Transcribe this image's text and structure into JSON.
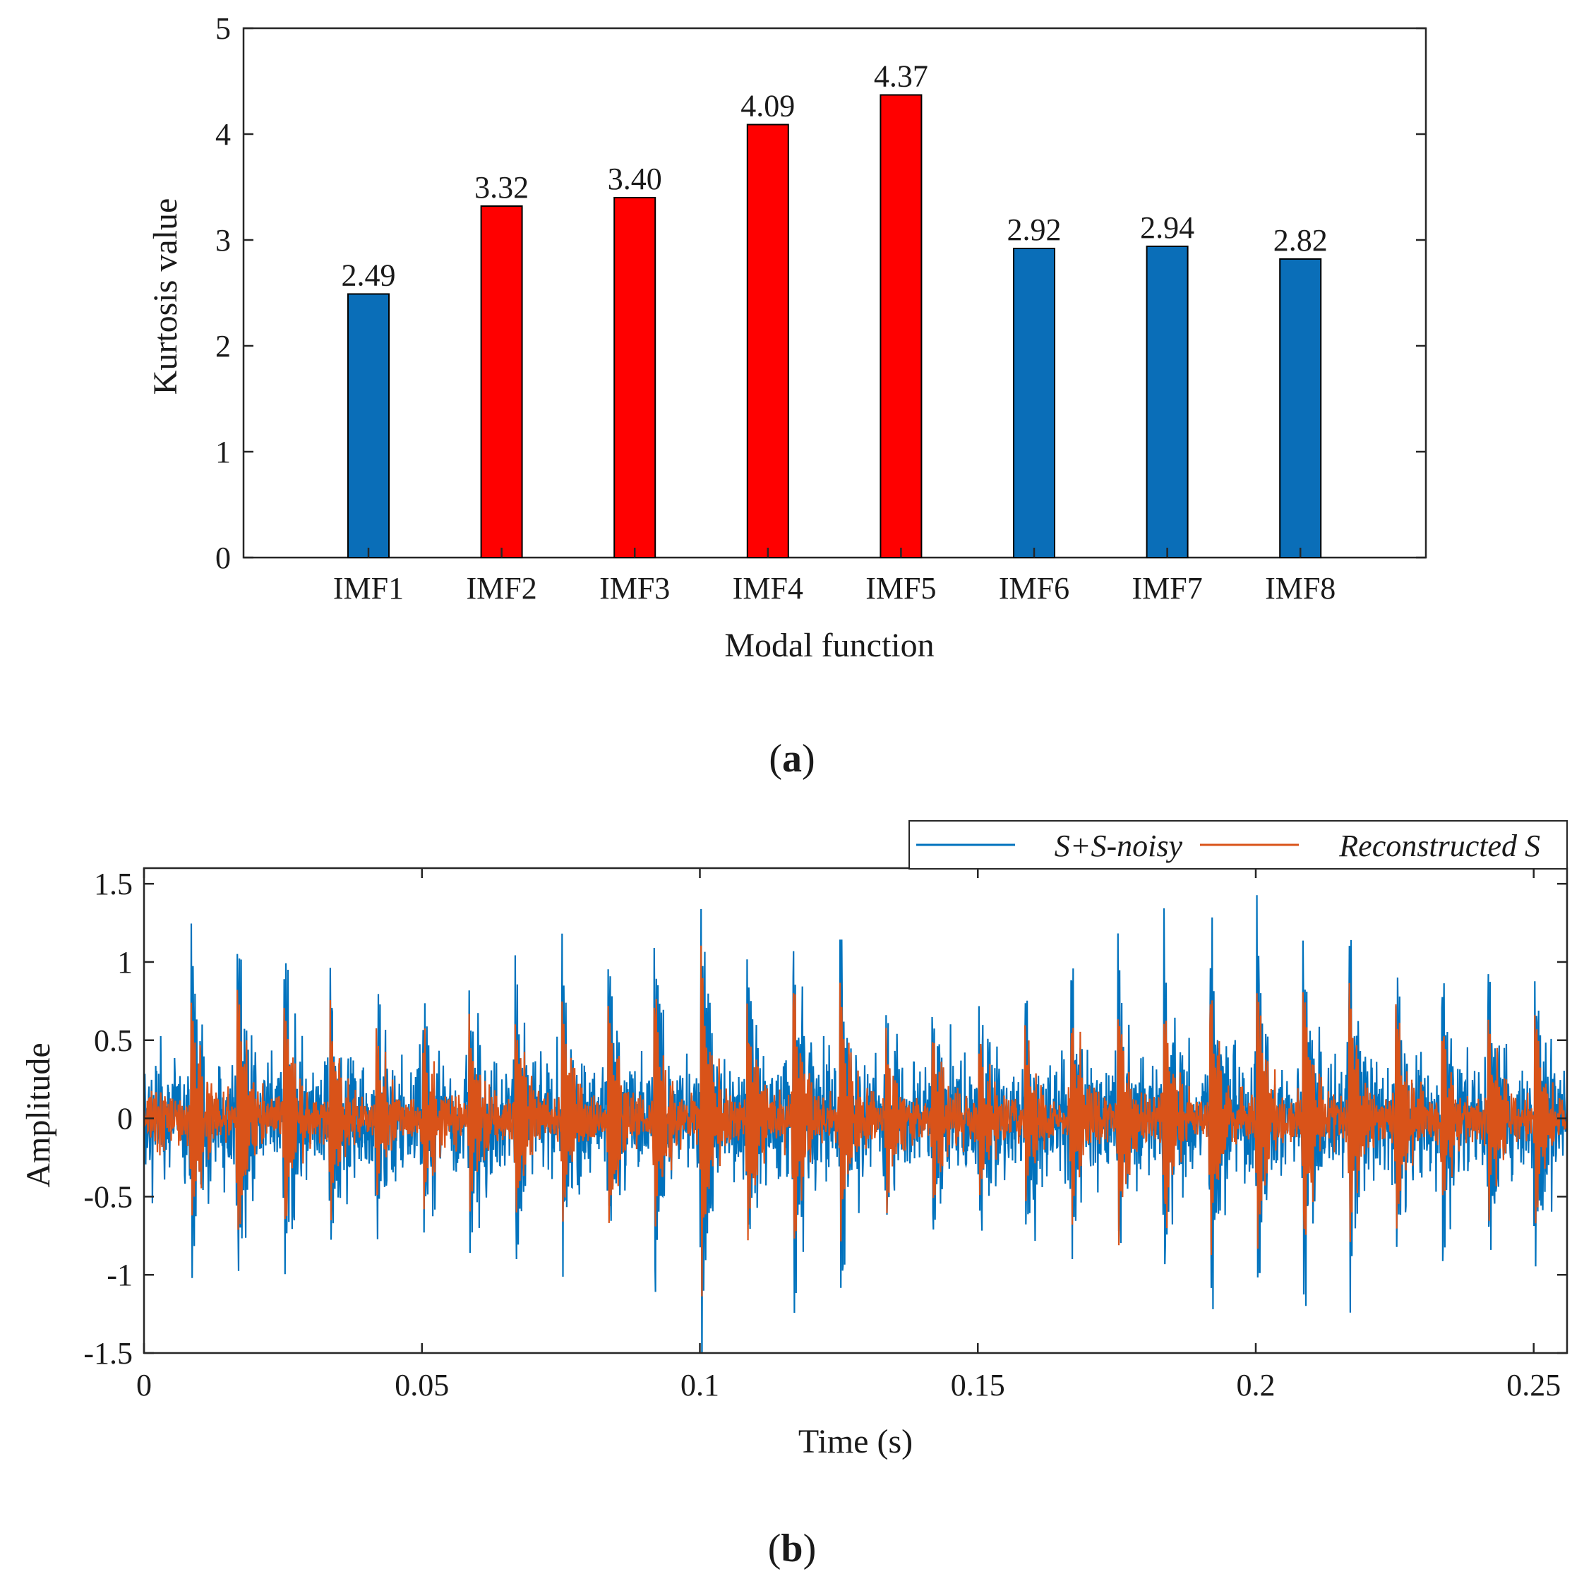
{
  "chart_data": [
    {
      "panel_label_open": "(",
      "panel_label_letter": "a",
      "panel_label_close": ")",
      "type": "bar",
      "xlabel": "Modal function",
      "ylabel": "Kurtosis value",
      "ylim": [
        0,
        5
      ],
      "yticks": [
        0,
        1,
        2,
        3,
        4,
        5
      ],
      "categories": [
        "IMF1",
        "IMF2",
        "IMF3",
        "IMF4",
        "IMF5",
        "IMF6",
        "IMF7",
        "IMF8"
      ],
      "values": [
        2.49,
        3.32,
        3.4,
        4.09,
        4.37,
        2.92,
        2.94,
        2.82
      ],
      "data_labels": [
        "2.49",
        "3.32",
        "3.40",
        "4.09",
        "4.37",
        "2.92",
        "2.94",
        "2.82"
      ],
      "bar_colors": [
        "#0a6eb8",
        "#ff0000",
        "#ff0000",
        "#ff0000",
        "#ff0000",
        "#0a6eb8",
        "#0a6eb8",
        "#0a6eb8"
      ],
      "grid": false,
      "box": true
    },
    {
      "panel_label_open": "(",
      "panel_label_letter": "b",
      "panel_label_close": ")",
      "type": "line",
      "xlabel": "Time (s)",
      "ylabel": "Amplitude",
      "xlim": [
        0,
        0.256
      ],
      "ylim": [
        -1.5,
        1.6
      ],
      "xticks": [
        0,
        0.05,
        0.1,
        0.15,
        0.2,
        0.25
      ],
      "xtick_labels": [
        "0",
        "0.05",
        "0.1",
        "0.15",
        "0.2",
        "0.25"
      ],
      "yticks": [
        -1.5,
        -1,
        -0.5,
        0,
        0.5,
        1,
        1.5
      ],
      "ytick_labels": [
        "-1.5",
        "-1",
        "-0.5",
        "0",
        "0.5",
        "1",
        "1.5"
      ],
      "legend_position": "top-right",
      "series": [
        {
          "name": "S+S-noisy",
          "color": "#0072bd",
          "noise_level": 0.17,
          "impulse_scale": 1.0,
          "impulses": [
            {
              "t": 0.0085,
              "a": 1.12
            },
            {
              "t": 0.0168,
              "a": 1.25
            },
            {
              "t": 0.0252,
              "a": 1.09
            },
            {
              "t": 0.0335,
              "a": 0.96
            },
            {
              "t": 0.0418,
              "a": 0.82
            },
            {
              "t": 0.0502,
              "a": 0.78
            },
            {
              "t": 0.0585,
              "a": 0.85
            },
            {
              "t": 0.0668,
              "a": 1.02
            },
            {
              "t": 0.0752,
              "a": 1.0
            },
            {
              "t": 0.0835,
              "a": 1.05
            },
            {
              "t": 0.0918,
              "a": 1.16
            },
            {
              "t": 0.1002,
              "a": 1.58
            },
            {
              "t": 0.1085,
              "a": 1.1
            },
            {
              "t": 0.1168,
              "a": 1.3
            },
            {
              "t": 0.1252,
              "a": 1.12
            },
            {
              "t": 0.1335,
              "a": 0.82
            },
            {
              "t": 0.1418,
              "a": 0.78
            },
            {
              "t": 0.1502,
              "a": 0.74
            },
            {
              "t": 0.1585,
              "a": 0.8
            },
            {
              "t": 0.1668,
              "a": 0.95
            },
            {
              "t": 0.1752,
              "a": 1.07
            },
            {
              "t": 0.1835,
              "a": 1.12
            },
            {
              "t": 0.1918,
              "a": 1.24
            },
            {
              "t": 0.2002,
              "a": 1.2
            },
            {
              "t": 0.2085,
              "a": 1.35
            },
            {
              "t": 0.2168,
              "a": 1.22
            },
            {
              "t": 0.2252,
              "a": 1.08
            },
            {
              "t": 0.2335,
              "a": 0.92
            },
            {
              "t": 0.2418,
              "a": 0.96
            },
            {
              "t": 0.2502,
              "a": 1.06
            }
          ]
        },
        {
          "name": "Reconstructed S",
          "color": "#d95319",
          "noise_level": 0.07,
          "impulse_scale": 0.7
        }
      ],
      "grid": false,
      "box": true
    }
  ]
}
